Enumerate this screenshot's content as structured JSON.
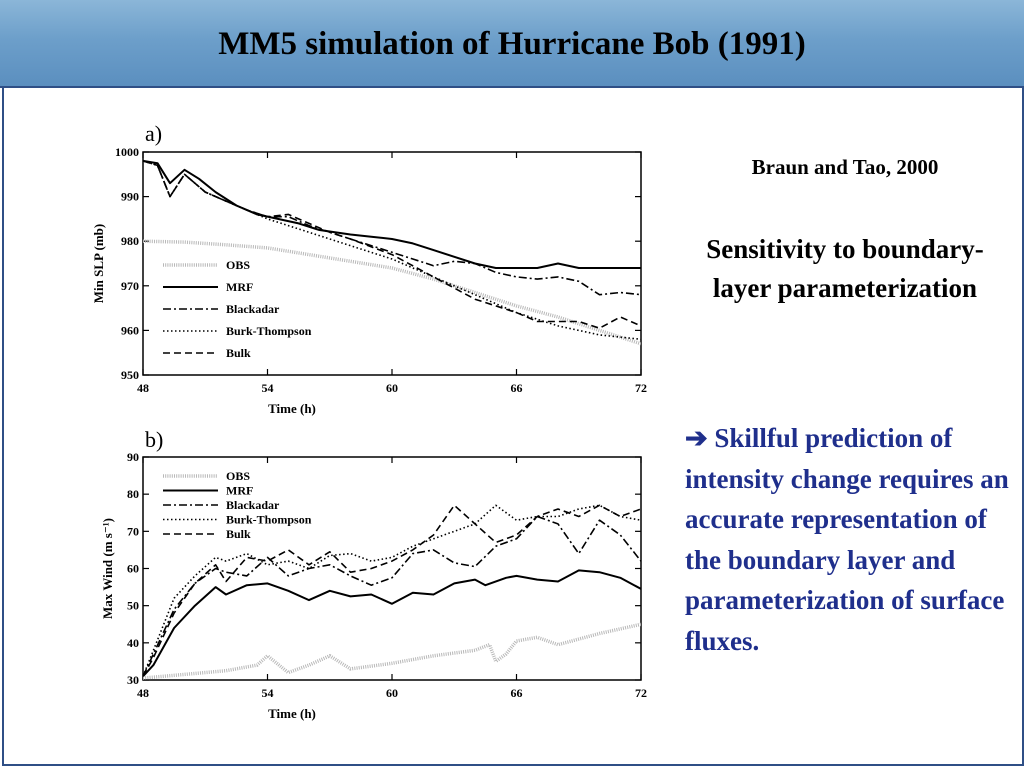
{
  "slide": {
    "title": "MM5 simulation of Hurricane Bob (1991)",
    "reference": "Braun and Tao, 2000",
    "subtitle": "Sensitivity to boundary-layer parameterization",
    "bullet_arrow": "➔",
    "bullet_text": "Skillful prediction of intensity change requires an accurate representation of the boundary layer and parameterization of surface fluxes."
  },
  "chart_data": [
    {
      "type": "line",
      "panel_label": "a)",
      "xlabel": "Time (h)",
      "ylabel": "Min SLP (mb)",
      "xlim": [
        48,
        72
      ],
      "ylim": [
        950,
        1000
      ],
      "x_ticks": [
        48,
        54,
        60,
        66,
        72
      ],
      "y_ticks": [
        950,
        960,
        970,
        980,
        990,
        1000
      ],
      "legend_position": "left",
      "series": [
        {
          "name": "OBS",
          "style": "obs",
          "x": [
            48,
            50,
            52,
            54,
            56,
            58,
            60,
            62,
            64,
            66,
            68,
            70,
            72
          ],
          "y": [
            980,
            979.8,
            979.2,
            978.5,
            977,
            975.5,
            974,
            971.5,
            968.5,
            965.5,
            963,
            960,
            957
          ]
        },
        {
          "name": "MRF",
          "style": "solid",
          "x": [
            48,
            48.7,
            49.3,
            50,
            50.7,
            51.5,
            52.5,
            53.5,
            54.5,
            55.5,
            56.5,
            58,
            59,
            60,
            61,
            62,
            63,
            64,
            65,
            66,
            67,
            68,
            69,
            70,
            71,
            72
          ],
          "y": [
            998,
            997.5,
            993,
            996,
            994,
            991,
            988,
            986,
            985,
            984,
            982.5,
            981.5,
            981,
            980.5,
            979.5,
            978,
            976.5,
            975,
            974,
            974,
            974,
            975,
            974,
            974,
            974,
            974
          ]
        },
        {
          "name": "Blackadar",
          "style": "dashdot",
          "x": [
            48,
            48.7,
            49.3,
            50,
            51,
            52,
            53,
            54,
            55,
            56,
            57,
            58,
            60,
            61,
            62,
            63,
            64,
            65,
            66,
            67,
            68,
            69,
            70,
            71,
            72
          ],
          "y": [
            998,
            997,
            990,
            995,
            991,
            989,
            987,
            985.5,
            985.5,
            983.5,
            982,
            980.5,
            977.5,
            976,
            974.5,
            975.5,
            975,
            973,
            972,
            971.5,
            972,
            971,
            968,
            968.5,
            968
          ]
        },
        {
          "name": "Burk-Thompson",
          "style": "dotted",
          "x": [
            48,
            48.7,
            49.3,
            50,
            51,
            52,
            53,
            54,
            56,
            58,
            60,
            62,
            64,
            66,
            68,
            69,
            70,
            71,
            72
          ],
          "y": [
            998,
            997,
            990,
            995,
            991,
            989,
            987,
            985,
            982,
            979,
            976,
            972,
            968,
            964,
            961,
            960,
            959,
            958.5,
            958
          ]
        },
        {
          "name": "Bulk",
          "style": "dashed",
          "x": [
            48,
            48.7,
            49.3,
            50,
            51,
            52,
            53,
            54,
            55,
            56,
            57,
            58,
            60,
            62,
            64,
            66,
            67,
            68,
            69,
            70,
            71,
            72
          ],
          "y": [
            998,
            997,
            990,
            995,
            991,
            989,
            987,
            985.5,
            986,
            984,
            982,
            980.5,
            977,
            972,
            967,
            964,
            962,
            962,
            962,
            960.5,
            963,
            961
          ]
        }
      ]
    },
    {
      "type": "line",
      "panel_label": "b)",
      "xlabel": "Time (h)",
      "ylabel": "Max Wind (m s⁻¹)",
      "xlim": [
        48,
        72
      ],
      "ylim": [
        30,
        90
      ],
      "x_ticks": [
        48,
        54,
        60,
        66,
        72
      ],
      "y_ticks": [
        30,
        40,
        50,
        60,
        70,
        80,
        90
      ],
      "legend_position": "top-left",
      "series": [
        {
          "name": "OBS",
          "style": "obs",
          "x": [
            48,
            50,
            52,
            53.5,
            54,
            55,
            56,
            57,
            58,
            60,
            62,
            64,
            64.7,
            65,
            65.5,
            66,
            67,
            68,
            70,
            72
          ],
          "y": [
            30.5,
            31.5,
            32.5,
            34,
            36.5,
            32,
            34,
            36.5,
            33,
            34.5,
            36.5,
            38,
            39.5,
            35,
            37,
            40.5,
            41.5,
            39.5,
            42.5,
            45
          ]
        },
        {
          "name": "MRF",
          "style": "solid",
          "x": [
            48,
            48.5,
            49.5,
            50.5,
            51.5,
            52,
            53,
            54,
            55,
            56,
            57,
            58,
            59,
            60,
            61,
            62,
            63,
            64,
            64.5,
            65.5,
            66,
            67,
            68,
            69,
            70,
            71,
            72
          ],
          "y": [
            31,
            34,
            44,
            50,
            55,
            53,
            55.5,
            56,
            54,
            51.5,
            54,
            52.5,
            53,
            50.5,
            53.5,
            53,
            56,
            57,
            55.5,
            57.5,
            58,
            57,
            56.5,
            59.5,
            59,
            57.5,
            54.5
          ]
        },
        {
          "name": "Blackadar",
          "style": "dashdot",
          "x": [
            48,
            48.5,
            49.5,
            50.5,
            51.5,
            52,
            53,
            54,
            55,
            56,
            57,
            58,
            59,
            60,
            61,
            62,
            63,
            64,
            65,
            66,
            67,
            68,
            69,
            70,
            71,
            72
          ],
          "y": [
            31,
            37,
            49,
            56,
            60,
            59,
            58,
            63,
            58,
            60,
            61,
            58,
            55.5,
            57.5,
            64,
            65,
            61.5,
            60.5,
            66,
            68,
            74,
            72,
            64,
            73,
            69,
            62
          ]
        },
        {
          "name": "Burk-Thompson",
          "style": "dotted",
          "x": [
            48,
            48.5,
            49.5,
            50.5,
            51.5,
            52,
            53,
            54,
            55,
            56,
            57,
            58,
            59,
            60,
            61,
            62,
            63,
            64,
            65,
            66,
            67,
            68,
            69,
            70,
            71,
            72
          ],
          "y": [
            31,
            38,
            52,
            58,
            63,
            62,
            64,
            61,
            62,
            60,
            63.5,
            64,
            62,
            63,
            66,
            68,
            70,
            72,
            77,
            73,
            74,
            74,
            76,
            77,
            74,
            73
          ]
        },
        {
          "name": "Bulk",
          "style": "dashed",
          "x": [
            48,
            48.5,
            49.5,
            50.5,
            51.5,
            52,
            53,
            54,
            55,
            56,
            57,
            58,
            59,
            60,
            61,
            62,
            63,
            64,
            65,
            66,
            67,
            68,
            69,
            70,
            71,
            72
          ],
          "y": [
            31,
            36,
            48,
            56,
            61,
            56.5,
            63,
            62,
            65,
            61,
            64.5,
            59,
            60,
            62,
            65,
            69,
            77,
            72,
            67,
            69,
            74,
            76,
            74,
            77,
            74,
            76
          ]
        }
      ]
    }
  ]
}
